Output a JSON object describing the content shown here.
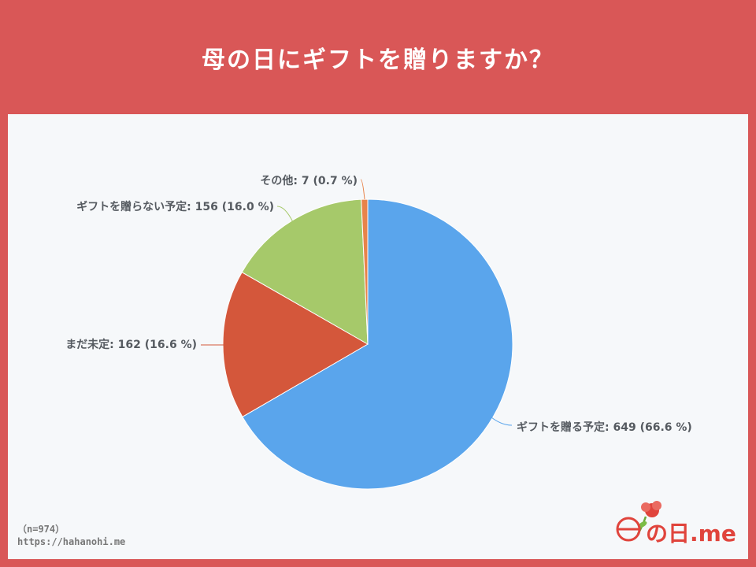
{
  "title": "母の日にギフトを贈りますか？",
  "footer": {
    "n": "（n=974）",
    "url": "https://hahanohi.me"
  },
  "logo": {
    "text": "の日.me",
    "accent": "#e0443c"
  },
  "chart_data": {
    "type": "pie",
    "title": "",
    "slices": [
      {
        "label": "ギフトを贈る予定: 649 (66.6 %)",
        "value": 649,
        "percent": 66.6,
        "color": "#5aa5ec"
      },
      {
        "label": "まだ未定: 162 (16.6 %)",
        "value": 162,
        "percent": 16.6,
        "color": "#d4573b"
      },
      {
        "label": "ギフトを贈らない予定: 156 (16.0 %)",
        "value": 156,
        "percent": 16.0,
        "color": "#a6c96a"
      },
      {
        "label": "その他: 7 (0.7 %)",
        "value": 7,
        "percent": 0.7,
        "color": "#e8834a"
      }
    ]
  }
}
